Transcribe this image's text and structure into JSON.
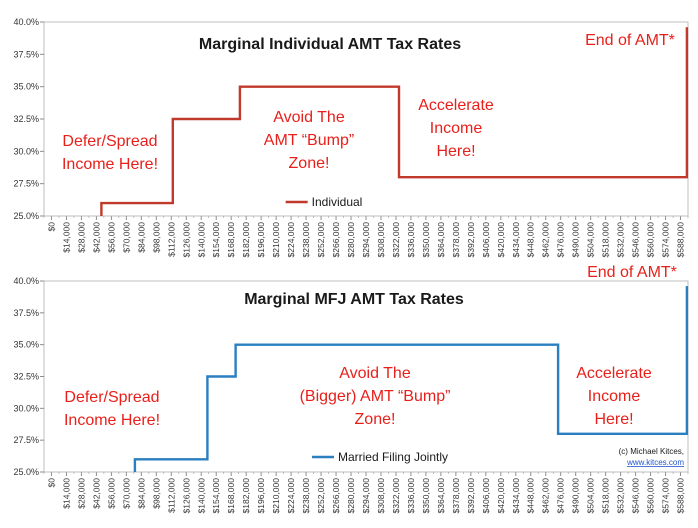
{
  "chart_data": [
    {
      "type": "line",
      "title": "Marginal Individual AMT Tax Rates",
      "xlabel": "",
      "ylabel": "",
      "ylim": [
        25,
        40
      ],
      "yticks": [
        "25.0%",
        "27.5%",
        "30.0%",
        "32.5%",
        "35.0%",
        "37.5%",
        "40.0%"
      ],
      "xlim": [
        0,
        595000
      ],
      "xticks": [
        "$0",
        "$14,000",
        "$28,000",
        "$42,000",
        "$56,000",
        "$70,000",
        "$84,000",
        "$98,000",
        "$112,000",
        "$126,000",
        "$140,000",
        "$154,000",
        "$168,000",
        "$182,000",
        "$196,000",
        "$210,000",
        "$224,000",
        "$238,000",
        "$252,000",
        "$266,000",
        "$280,000",
        "$294,000",
        "$308,000",
        "$322,000",
        "$336,000",
        "$350,000",
        "$364,000",
        "$378,000",
        "$392,000",
        "$406,000",
        "$420,000",
        "$434,000",
        "$448,000",
        "$462,000",
        "$476,000",
        "$490,000",
        "$504,000",
        "$518,000",
        "$532,000",
        "$546,000",
        "$560,000",
        "$574,000",
        "$588,000"
      ],
      "grid": false,
      "legend_position": "bottom-center",
      "color": "#c0392b",
      "series": [
        {
          "name": "Individual",
          "x": [
            53000,
            53000,
            119000,
            119000,
            181000,
            181000,
            328000,
            328000,
            594000,
            594000
          ],
          "y": [
            25,
            26,
            26,
            32.5,
            32.5,
            35,
            35,
            28,
            28,
            39.6
          ]
        }
      ],
      "annotations": [
        {
          "id": "defer",
          "lines": [
            "Defer/Spread",
            "Income Here!"
          ]
        },
        {
          "id": "avoid",
          "lines": [
            "Avoid The",
            "AMT “Bump”",
            "Zone!"
          ]
        },
        {
          "id": "accel",
          "lines": [
            "Accelerate",
            "Income",
            "Here!"
          ]
        },
        {
          "id": "end",
          "lines": [
            "End of AMT*"
          ]
        }
      ]
    },
    {
      "type": "line",
      "title": "Marginal MFJ AMT Tax Rates",
      "xlabel": "",
      "ylabel": "",
      "ylim": [
        25,
        40
      ],
      "yticks": [
        "25.0%",
        "27.5%",
        "30.0%",
        "32.5%",
        "35.0%",
        "37.5%",
        "40.0%"
      ],
      "xlim": [
        0,
        595000
      ],
      "xticks": [
        "$0",
        "$14,000",
        "$28,000",
        "$42,000",
        "$56,000",
        "$70,000",
        "$84,000",
        "$98,000",
        "$112,000",
        "$126,000",
        "$140,000",
        "$154,000",
        "$168,000",
        "$182,000",
        "$196,000",
        "$210,000",
        "$224,000",
        "$238,000",
        "$252,000",
        "$266,000",
        "$280,000",
        "$294,000",
        "$308,000",
        "$322,000",
        "$336,000",
        "$350,000",
        "$364,000",
        "$378,000",
        "$392,000",
        "$406,000",
        "$420,000",
        "$434,000",
        "$448,000",
        "$462,000",
        "$476,000",
        "$490,000",
        "$504,000",
        "$518,000",
        "$532,000",
        "$546,000",
        "$560,000",
        "$574,000",
        "$588,000"
      ],
      "grid": false,
      "legend_position": "bottom-center",
      "color": "#2a7fc1",
      "series": [
        {
          "name": "Married Filing Jointly",
          "x": [
            84000,
            84000,
            151000,
            151000,
            177000,
            177000,
            475000,
            475000,
            594000,
            594000
          ],
          "y": [
            25,
            26,
            26,
            32.5,
            32.5,
            35,
            35,
            28,
            28,
            39.6
          ]
        }
      ],
      "annotations": [
        {
          "id": "defer",
          "lines": [
            "Defer/Spread",
            "Income Here!"
          ]
        },
        {
          "id": "avoid",
          "lines": [
            "Avoid The",
            "(Bigger) AMT “Bump”",
            "Zone!"
          ]
        },
        {
          "id": "accel",
          "lines": [
            "Accelerate",
            "Income",
            "Here!"
          ]
        },
        {
          "id": "end",
          "lines": [
            "End of AMT*"
          ]
        }
      ],
      "credit": {
        "text": "(c) Michael Kitces,",
        "link": "www.kitces.com"
      }
    }
  ]
}
